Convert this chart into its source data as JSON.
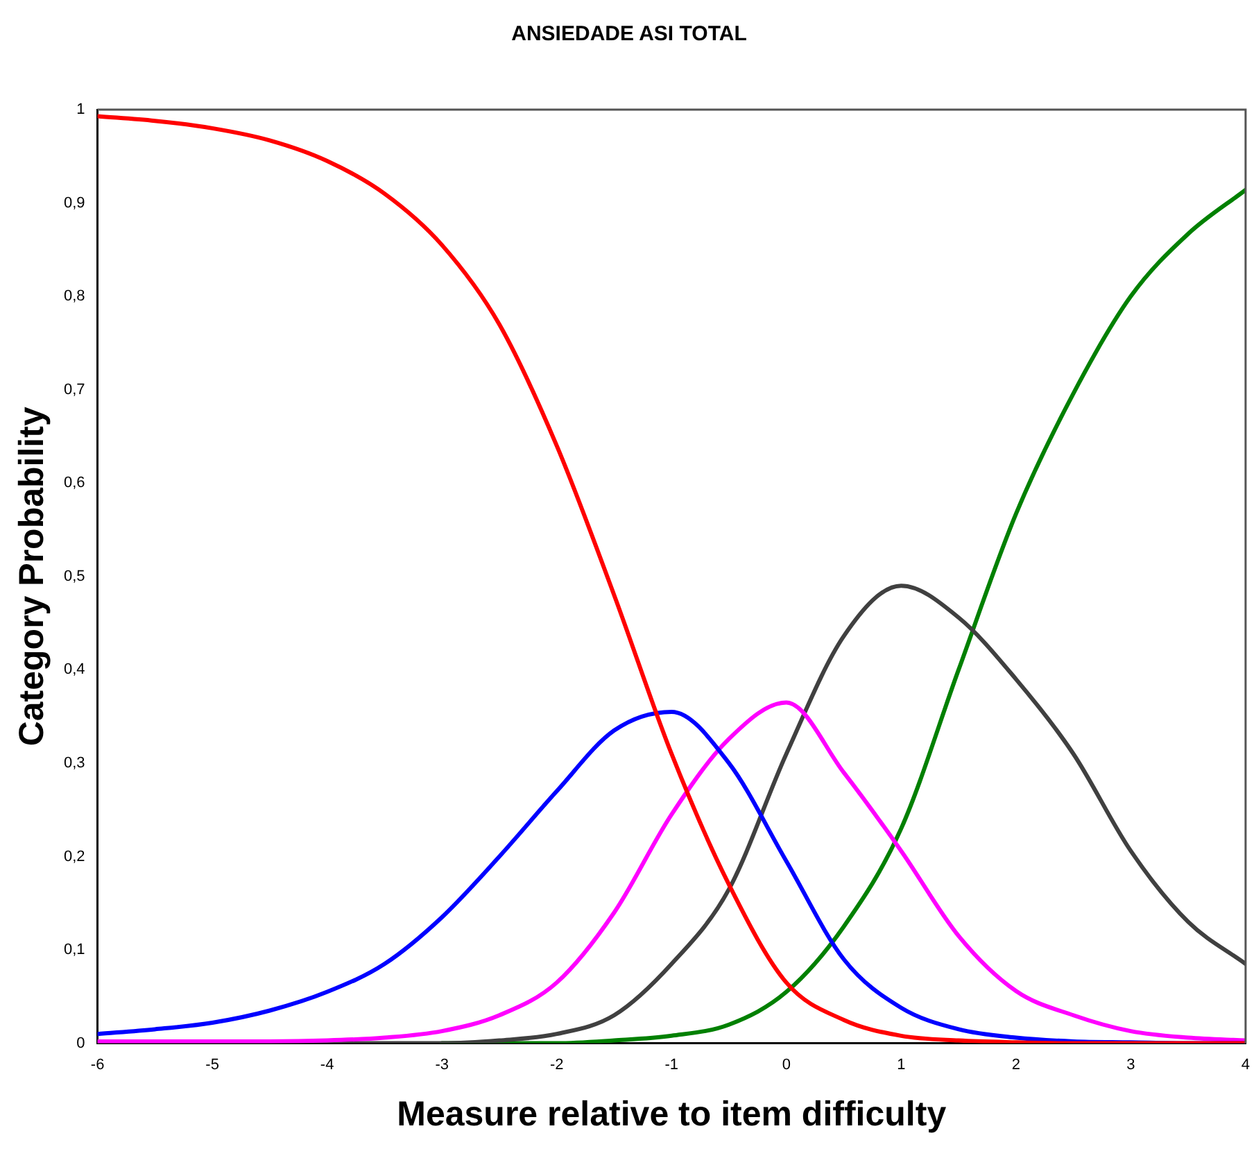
{
  "chart_data": {
    "type": "line",
    "title": "ANSIEDADE ASI TOTAL",
    "xlabel": "Measure relative to item difficulty",
    "ylabel": "Category Probability",
    "x": [
      -6,
      -5.5,
      -5,
      -4.5,
      -4,
      -3.5,
      -3,
      -2.5,
      -2,
      -1.5,
      -1,
      -0.5,
      0,
      0.5,
      1,
      1.5,
      2,
      2.5,
      3,
      3.5,
      4
    ],
    "series": [
      {
        "color": "#ff0000",
        "values": [
          0.993,
          0.988,
          0.98,
          0.967,
          0.945,
          0.91,
          0.855,
          0.77,
          0.64,
          0.48,
          0.31,
          0.17,
          0.065,
          0.025,
          0.008,
          0.003,
          0.001,
          0,
          0,
          0,
          0
        ]
      },
      {
        "color": "#0000ff",
        "values": [
          0.01,
          0.015,
          0.022,
          0.035,
          0.055,
          0.085,
          0.135,
          0.2,
          0.27,
          0.335,
          0.355,
          0.3,
          0.195,
          0.09,
          0.038,
          0.015,
          0.006,
          0.002,
          0.001,
          0,
          0
        ]
      },
      {
        "color": "#ff00ff",
        "values": [
          0.002,
          0.002,
          0.002,
          0.002,
          0.003,
          0.006,
          0.013,
          0.03,
          0.065,
          0.14,
          0.245,
          0.326,
          0.365,
          0.29,
          0.206,
          0.115,
          0.056,
          0.03,
          0.013,
          0.006,
          0.003
        ]
      },
      {
        "color": "#404040",
        "values": [
          0,
          0,
          0,
          0,
          0,
          0,
          0,
          0.003,
          0.01,
          0.03,
          0.085,
          0.165,
          0.31,
          0.436,
          0.49,
          0.456,
          0.39,
          0.31,
          0.206,
          0.13,
          0.085
        ]
      },
      {
        "color": "#008000",
        "values": [
          null,
          null,
          null,
          null,
          null,
          null,
          0,
          0,
          0,
          0.003,
          0.008,
          0.02,
          0.055,
          0.125,
          0.23,
          0.4,
          0.567,
          0.696,
          0.8,
          0.867,
          0.914
        ]
      }
    ],
    "xlim": [
      -6,
      4
    ],
    "xticks": [
      -6,
      -5,
      -4,
      -3,
      -2,
      -1,
      0,
      1,
      2,
      3,
      4
    ],
    "ylim": [
      0,
      1
    ],
    "yticks": [
      0,
      {
        "value": 0.1,
        "label": "0,1"
      },
      {
        "value": 0.2,
        "label": "0,2"
      },
      {
        "value": 0.3,
        "label": "0,3"
      },
      {
        "value": 0.4,
        "label": "0,4"
      },
      {
        "value": 0.5,
        "label": "0,5"
      },
      {
        "value": 0.6,
        "label": "0,6"
      },
      {
        "value": 0.7,
        "label": "0,7"
      },
      {
        "value": 0.8,
        "label": "0,8"
      },
      {
        "value": 0.9,
        "label": "0,9"
      },
      1
    ],
    "grid": false,
    "legend": false,
    "marker": "none",
    "line_style": "solid"
  }
}
